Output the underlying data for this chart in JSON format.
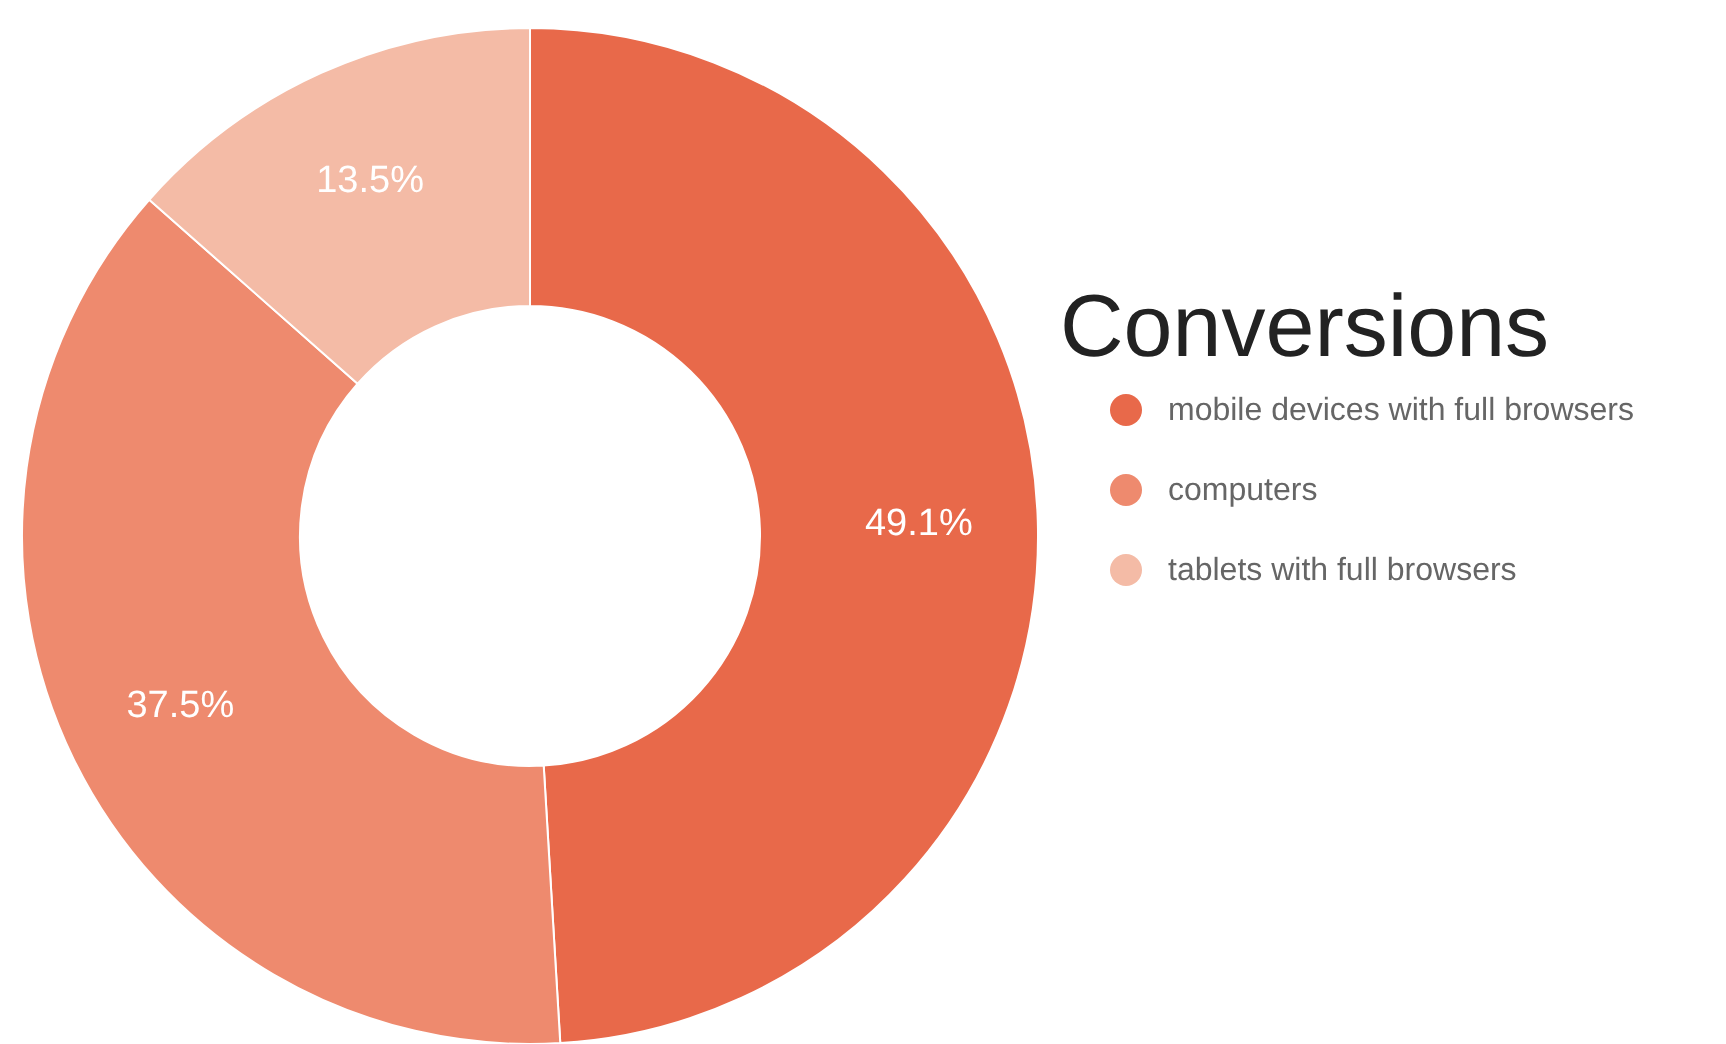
{
  "chart_data": {
    "type": "donut",
    "title": "Conversions",
    "categories": [
      "mobile devices with full browsers",
      "computers",
      "tablets with full browsers"
    ],
    "values": [
      49.1,
      37.5,
      13.5
    ],
    "colors": [
      "#e8694a",
      "#ee8a6e",
      "#f4bba6"
    ],
    "value_labels": [
      "49.1%",
      "37.5%",
      "13.5%"
    ],
    "legend": "right"
  }
}
